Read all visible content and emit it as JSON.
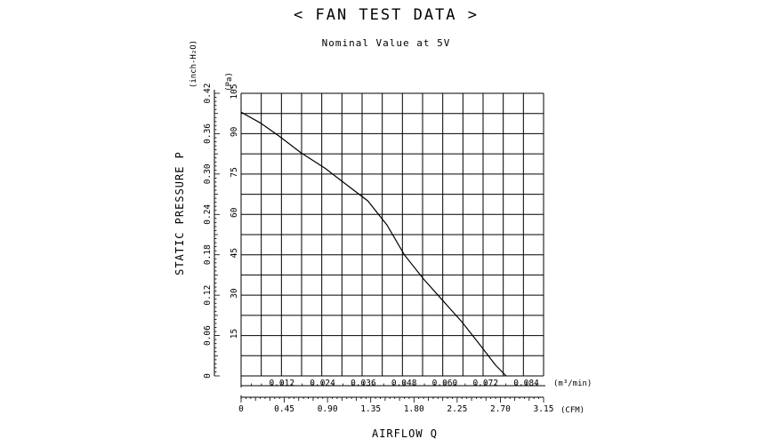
{
  "chart_data": {
    "type": "line",
    "title": "< FAN TEST DATA >",
    "subtitle": "Nominal Value at 5V",
    "xlabel": "AIRFLOW Q",
    "ylabel": "STATIC PRESSURE P",
    "y_left_unit": "(inch-H₂O)",
    "y_right_unit": "(Pa)",
    "x_top_unit": "(m³/min)",
    "x_bottom_unit": "(CFM)",
    "grid": true,
    "xlim_cfm": [
      0,
      3.15
    ],
    "ylim_pa": [
      0,
      105
    ],
    "x_m3min_ticks": [
      "0.012",
      "0.024",
      "0.036",
      "0.048",
      "0.060",
      "0.072",
      "0.084"
    ],
    "x_cfm_ticks": [
      "0",
      "0.45",
      "0.90",
      "1.35",
      "1.80",
      "2.25",
      "2.70",
      "3.15"
    ],
    "y_inch_ticks": [
      "0",
      "0.06",
      "0.12",
      "0.18",
      "0.24",
      "0.30",
      "0.36",
      "0.42"
    ],
    "y_pa_ticks": [
      "15",
      "30",
      "45",
      "60",
      "75",
      "90",
      "105"
    ],
    "series": [
      {
        "x_cfm": [
          0,
          0.2,
          0.4,
          0.62,
          0.88,
          1.1,
          1.32,
          1.52,
          1.7,
          1.9,
          2.1,
          2.3,
          2.5,
          2.65,
          2.76
        ],
        "y_pa": [
          98,
          94,
          89,
          83,
          77,
          71,
          65,
          56,
          45,
          36,
          28,
          20,
          11,
          4,
          0
        ]
      }
    ]
  }
}
